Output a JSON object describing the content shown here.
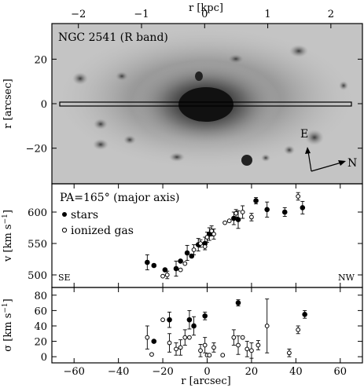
{
  "colors": {
    "ink": "#000000",
    "paper": "#ffffff",
    "image_bg": "#bdbdbd",
    "image_core": "#1a1a1a"
  },
  "chart_data": [
    {
      "type": "image",
      "panel": "galaxy-image",
      "label": "NGC 2541 (R band)",
      "xlabel_top": "r [kpc]",
      "xticks_top": [
        "−2",
        "−1",
        "0",
        "1",
        "2"
      ],
      "xticks_top_values": [
        -2,
        -1,
        0,
        1,
        2
      ],
      "xlim_kpc": [
        -2.42,
        2.5
      ],
      "ylabel": "r [arcsec]",
      "ylim": [
        -36,
        36
      ],
      "yticks": [
        "20",
        "0",
        "−20"
      ],
      "yticks_values": [
        20,
        0,
        -20
      ],
      "compass": {
        "east": "E",
        "north": "N"
      },
      "slit": {
        "y_range": [
          -1,
          1
        ]
      }
    },
    {
      "type": "scatter",
      "panel": "velocity",
      "annotation": "PA=165° (major axis)",
      "ylabel": "v [km s",
      "ylabel_sup": "−1",
      "ylabel_tail": "]",
      "ylim": [
        480,
        645
      ],
      "yticks": [
        "500",
        "550",
        "600"
      ],
      "yticks_values": [
        500,
        550,
        600
      ],
      "xlim": [
        -70,
        70
      ],
      "corner_left": "SE",
      "corner_right": "NW",
      "legend": {
        "stars": "stars",
        "gas": "ionized gas",
        "placement": "top-left"
      },
      "series": [
        {
          "name": "stars",
          "marker": "filled",
          "points": [
            {
              "x": -27,
              "y": 520,
              "err": 12
            },
            {
              "x": -24,
              "y": 515,
              "err": 0
            },
            {
              "x": -19,
              "y": 508,
              "err": 0
            },
            {
              "x": -14,
              "y": 510,
              "err": 12
            },
            {
              "x": -12,
              "y": 522,
              "err": 0
            },
            {
              "x": -9,
              "y": 535,
              "err": 12
            },
            {
              "x": -7,
              "y": 530,
              "err": 0
            },
            {
              "x": -4,
              "y": 548,
              "err": 10
            },
            {
              "x": -1,
              "y": 550,
              "err": 10
            },
            {
              "x": 1,
              "y": 565,
              "err": 10
            },
            {
              "x": 12,
              "y": 590,
              "err": 10
            },
            {
              "x": 14,
              "y": 588,
              "err": 14
            },
            {
              "x": 22,
              "y": 618,
              "err": 5
            },
            {
              "x": 27,
              "y": 604,
              "err": 12
            },
            {
              "x": 35,
              "y": 600,
              "err": 7
            },
            {
              "x": 43,
              "y": 607,
              "err": 10
            }
          ]
        },
        {
          "name": "ionized gas",
          "marker": "open",
          "points": [
            {
              "x": -20,
              "y": 498,
              "err": 0
            },
            {
              "x": -18,
              "y": 500,
              "err": 6
            },
            {
              "x": -12,
              "y": 508,
              "err": 0
            },
            {
              "x": -10,
              "y": 518,
              "err": 0
            },
            {
              "x": -6,
              "y": 540,
              "err": 8
            },
            {
              "x": -3,
              "y": 550,
              "err": 6
            },
            {
              "x": -1,
              "y": 545,
              "err": 0
            },
            {
              "x": 0,
              "y": 560,
              "err": 8
            },
            {
              "x": 2,
              "y": 570,
              "err": 8
            },
            {
              "x": 3,
              "y": 565,
              "err": 8
            },
            {
              "x": 8,
              "y": 583,
              "err": 0
            },
            {
              "x": 10,
              "y": 586,
              "err": 0
            },
            {
              "x": 13,
              "y": 598,
              "err": 6
            },
            {
              "x": 16,
              "y": 600,
              "err": 10
            },
            {
              "x": 20,
              "y": 592,
              "err": 6
            },
            {
              "x": 41,
              "y": 625,
              "err": 6
            }
          ]
        }
      ]
    },
    {
      "type": "scatter",
      "panel": "dispersion",
      "ylabel": "σ [km s",
      "ylabel_sup": "−1",
      "ylabel_tail": "]",
      "ylim": [
        -8,
        90
      ],
      "yticks": [
        "0",
        "20",
        "40",
        "60",
        "80"
      ],
      "yticks_values": [
        0,
        20,
        40,
        60,
        80
      ],
      "xlim": [
        -70,
        70
      ],
      "xlabel": "r [arcsec]",
      "xticks": [
        "−60",
        "−40",
        "−20",
        "0",
        "20",
        "40",
        "60"
      ],
      "xticks_values": [
        -60,
        -40,
        -20,
        0,
        20,
        40,
        60
      ],
      "series": [
        {
          "name": "stars",
          "marker": "filled",
          "points": [
            {
              "x": -24,
              "y": 20,
              "err": 0
            },
            {
              "x": -17,
              "y": 48,
              "err": 10
            },
            {
              "x": -8,
              "y": 48,
              "err": 12
            },
            {
              "x": -6,
              "y": 40,
              "err": 12
            },
            {
              "x": -1,
              "y": 53,
              "err": 5
            },
            {
              "x": 14,
              "y": 70,
              "err": 4
            },
            {
              "x": 44,
              "y": 55,
              "err": 5
            }
          ]
        },
        {
          "name": "ionized gas",
          "marker": "open",
          "points": [
            {
              "x": -27,
              "y": 25,
              "err": 15
            },
            {
              "x": -25,
              "y": 3,
              "err": 0
            },
            {
              "x": -20,
              "y": 48,
              "err": 0
            },
            {
              "x": -17,
              "y": 18,
              "err": 12
            },
            {
              "x": -14,
              "y": 10,
              "err": 8
            },
            {
              "x": -12,
              "y": 12,
              "err": 10
            },
            {
              "x": -10,
              "y": 25,
              "err": 10
            },
            {
              "x": -8,
              "y": 25,
              "err": 0
            },
            {
              "x": -3,
              "y": 8,
              "err": 8
            },
            {
              "x": -1,
              "y": 15,
              "err": 10
            },
            {
              "x": 0,
              "y": 2,
              "err": 0
            },
            {
              "x": 1,
              "y": 2,
              "err": 0
            },
            {
              "x": 3,
              "y": 12,
              "err": 6
            },
            {
              "x": 7,
              "y": 2,
              "err": 0
            },
            {
              "x": 12,
              "y": 25,
              "err": 10
            },
            {
              "x": 14,
              "y": 15,
              "err": 12
            },
            {
              "x": 16,
              "y": 25,
              "err": 0
            },
            {
              "x": 18,
              "y": 10,
              "err": 10
            },
            {
              "x": 20,
              "y": 8,
              "err": 10
            },
            {
              "x": 23,
              "y": 15,
              "err": 6
            },
            {
              "x": 27,
              "y": 40,
              "err": 35
            },
            {
              "x": 37,
              "y": 5,
              "err": 5
            },
            {
              "x": 41,
              "y": 35,
              "err": 5
            }
          ]
        }
      ]
    }
  ]
}
